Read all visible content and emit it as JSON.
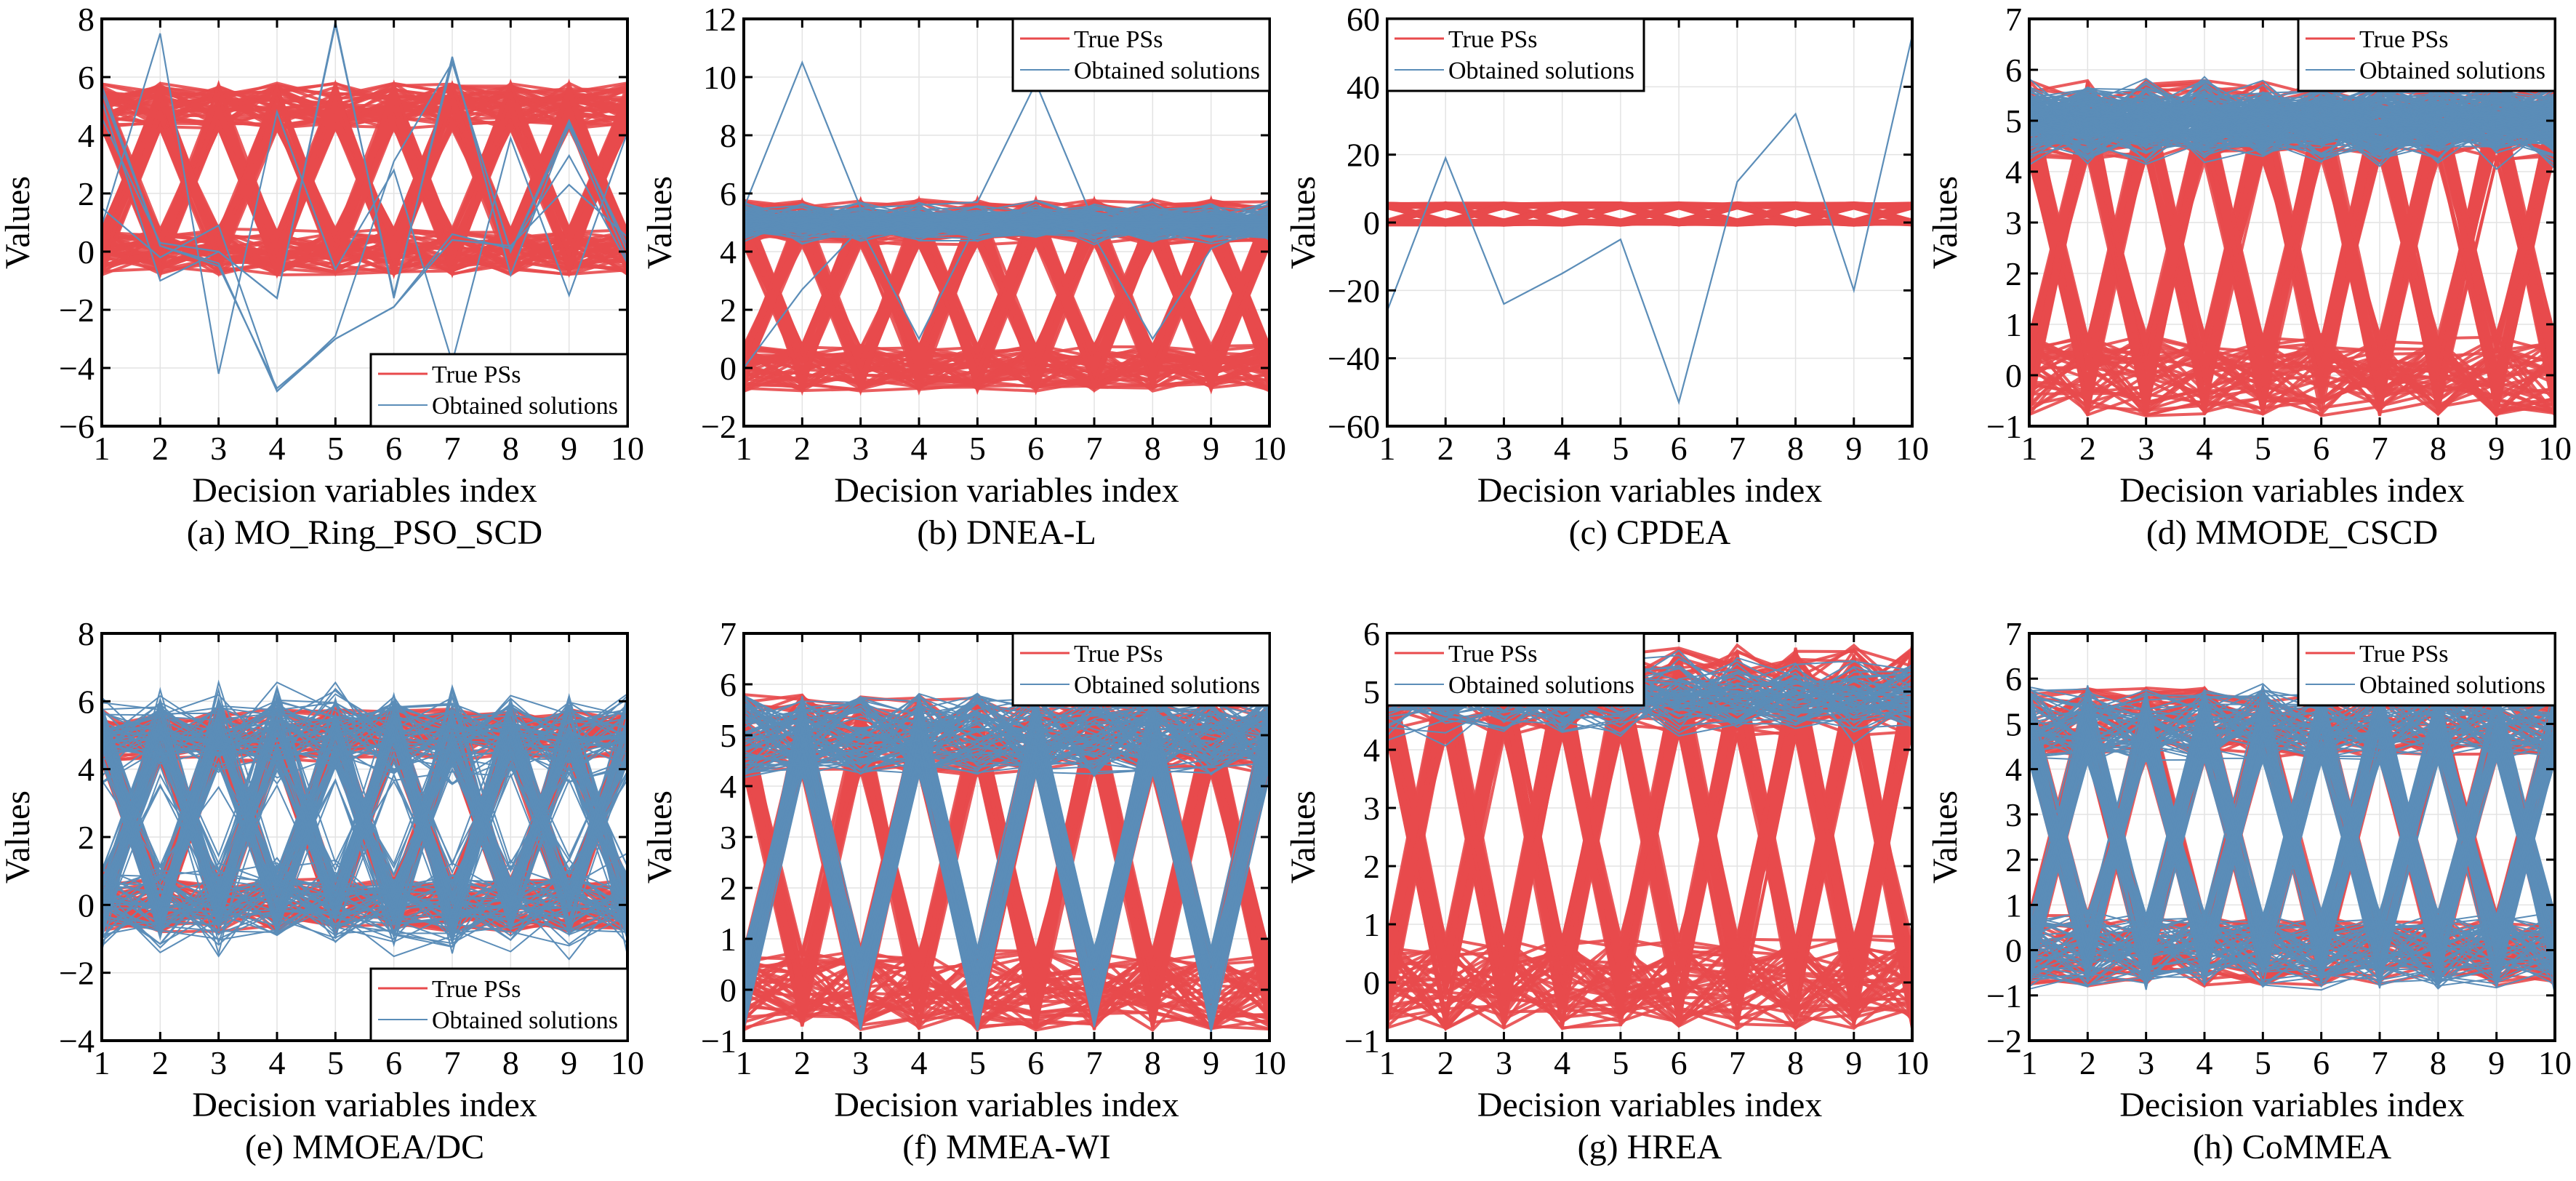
{
  "figure": {
    "colors": {
      "true_ps": "#E84A4C",
      "obtained": "#5B8DB8",
      "grid": "#E3E3E3",
      "axis": "#000000"
    },
    "legend_labels": {
      "true_ps": "True PSs",
      "obtained": "Obtained solutions"
    }
  },
  "chart_data": [
    {
      "id": "a",
      "type": "line",
      "caption": "(a) MO_Ring_PSO_SCD",
      "xlabel": "Decision variables index",
      "ylabel": "Values",
      "x": [
        1,
        2,
        3,
        4,
        5,
        6,
        7,
        8,
        9,
        10
      ],
      "xticks": [
        "1",
        "2",
        "3",
        "4",
        "5",
        "6",
        "7",
        "8",
        "9",
        "10"
      ],
      "ylim": [
        -6,
        8
      ],
      "yticks": [
        -6,
        -4,
        -2,
        0,
        2,
        4,
        6,
        8
      ],
      "ytick_labels": [
        "−6",
        "−4",
        "−2",
        "0",
        "2",
        "4",
        "6",
        "8"
      ],
      "grid": true,
      "legend_position": "bottom-right",
      "true_ps": {
        "low_band": [
          -0.8,
          0.8
        ],
        "high_band": [
          4.2,
          5.8
        ],
        "patterns": [
          "all-high",
          "all-low",
          "alternate-high-first",
          "alternate-low-first"
        ],
        "lines_per_pattern": 40
      },
      "obtained": {
        "mode": "explicit",
        "series": [
          [
            5.7,
            0.2,
            -0.4,
            -4.8,
            -3.0,
            -1.9,
            0.6,
            0.1,
            3.3,
            -0.4
          ],
          [
            4.6,
            0.3,
            0.0,
            -1.6,
            7.9,
            -1.6,
            6.7,
            -0.8,
            4.4,
            0.2
          ],
          [
            1.5,
            -0.2,
            0.9,
            -4.8,
            -2.9,
            3.1,
            6.5,
            0.0,
            4.5,
            0.0
          ],
          [
            0.9,
            7.5,
            -4.2,
            4.8,
            -0.6,
            2.8,
            -3.8,
            3.9,
            -1.5,
            4.1
          ],
          [
            5.5,
            0.2,
            -0.5,
            -4.7,
            -3.0,
            -1.9,
            0.4,
            0.2,
            2.3,
            0.5
          ],
          [
            5.2,
            -1.0,
            0.0,
            -1.6,
            7.8,
            -1.5,
            6.5,
            0.0,
            4.3,
            -0.3
          ]
        ]
      }
    },
    {
      "id": "b",
      "type": "line",
      "caption": "(b) DNEA-L",
      "xlabel": "Decision variables index",
      "ylabel": "Values",
      "x": [
        1,
        2,
        3,
        4,
        5,
        6,
        7,
        8,
        9,
        10
      ],
      "xticks": [
        "1",
        "2",
        "3",
        "4",
        "5",
        "6",
        "7",
        "8",
        "9",
        "10"
      ],
      "ylim": [
        -2,
        12
      ],
      "yticks": [
        -2,
        0,
        2,
        4,
        6,
        8,
        10,
        12
      ],
      "ytick_labels": [
        "−2",
        "0",
        "2",
        "4",
        "6",
        "8",
        "10",
        "12"
      ],
      "grid": true,
      "legend_position": "top-right",
      "true_ps": {
        "low_band": [
          -0.8,
          0.8
        ],
        "high_band": [
          4.2,
          5.8
        ],
        "patterns": [
          "all-high",
          "all-low",
          "alternate-high-first",
          "alternate-low-first"
        ],
        "lines_per_pattern": 40
      },
      "obtained": {
        "mode": "band",
        "center": 5.0,
        "spread": 0.85,
        "count": 120,
        "series": [
          [
            5.5,
            10.5,
            5.5,
            5.6,
            5.7,
            9.8,
            5.0,
            5.0,
            5.0,
            5.0
          ],
          [
            0.0,
            2.7,
            4.8,
            1.0,
            5.0,
            4.8,
            4.5,
            1.0,
            4.1,
            5.0
          ]
        ]
      }
    },
    {
      "id": "c",
      "type": "line",
      "caption": "(c) CPDEA",
      "xlabel": "Decision variables index",
      "ylabel": "Values",
      "x": [
        1,
        2,
        3,
        4,
        5,
        6,
        7,
        8,
        9,
        10
      ],
      "xticks": [
        "1",
        "2",
        "3",
        "4",
        "5",
        "6",
        "7",
        "8",
        "9",
        "10"
      ],
      "ylim": [
        -60,
        60
      ],
      "yticks": [
        -60,
        -40,
        -20,
        0,
        20,
        40,
        60
      ],
      "ytick_labels": [
        "−60",
        "−40",
        "−20",
        "0",
        "20",
        "40",
        "60"
      ],
      "grid": true,
      "legend_position": "top-left",
      "true_ps": {
        "low_band": [
          -0.8,
          0.8
        ],
        "high_band": [
          4.2,
          5.8
        ],
        "patterns": [
          "all-high",
          "all-low",
          "alternate-high-first",
          "alternate-low-first"
        ],
        "lines_per_pattern": 40
      },
      "obtained": {
        "mode": "explicit",
        "series": [
          [
            -26,
            19,
            -24,
            -15,
            -5,
            -53,
            12,
            32,
            -20,
            55
          ]
        ]
      }
    },
    {
      "id": "d",
      "type": "line",
      "caption": "(d) MMODE_CSCD",
      "xlabel": "Decision variables index",
      "ylabel": "Values",
      "x": [
        1,
        2,
        3,
        4,
        5,
        6,
        7,
        8,
        9,
        10
      ],
      "xticks": [
        "1",
        "2",
        "3",
        "4",
        "5",
        "6",
        "7",
        "8",
        "9",
        "10"
      ],
      "ylim": [
        -1,
        7
      ],
      "yticks": [
        -1,
        0,
        1,
        2,
        3,
        4,
        5,
        6,
        7
      ],
      "ytick_labels": [
        "−1",
        "0",
        "1",
        "2",
        "3",
        "4",
        "5",
        "6",
        "7"
      ],
      "grid": true,
      "legend_position": "top-right",
      "true_ps": {
        "low_band": [
          -0.8,
          0.8
        ],
        "high_band": [
          4.2,
          5.8
        ],
        "patterns": [
          "all-high",
          "all-low",
          "alternate-high-first",
          "alternate-low-first"
        ],
        "lines_per_pattern": 40
      },
      "obtained": {
        "mode": "band",
        "center": 5.0,
        "spread": 1.0,
        "count": 200,
        "series": []
      }
    },
    {
      "id": "e",
      "type": "line",
      "caption": "(e) MMOEA/DC",
      "xlabel": "Decision variables index",
      "ylabel": "Values",
      "x": [
        1,
        2,
        3,
        4,
        5,
        6,
        7,
        8,
        9,
        10
      ],
      "xticks": [
        "1",
        "2",
        "3",
        "4",
        "5",
        "6",
        "7",
        "8",
        "9",
        "10"
      ],
      "ylim": [
        -4,
        8
      ],
      "yticks": [
        -4,
        -2,
        0,
        2,
        4,
        6,
        8
      ],
      "ytick_labels": [
        "−4",
        "−2",
        "0",
        "2",
        "4",
        "6",
        "8"
      ],
      "grid": true,
      "legend_position": "bottom-right",
      "true_ps": {
        "low_band": [
          -0.8,
          0.8
        ],
        "high_band": [
          4.2,
          5.8
        ],
        "patterns": [
          "all-high",
          "all-low",
          "alternate-high-first",
          "alternate-low-first"
        ],
        "lines_per_pattern": 40
      },
      "obtained": {
        "mode": "noisy-patterns",
        "spread": 2.2,
        "count": 160,
        "series": []
      }
    },
    {
      "id": "f",
      "type": "line",
      "caption": "(f) MMEA-WI",
      "xlabel": "Decision variables index",
      "ylabel": "Values",
      "x": [
        1,
        2,
        3,
        4,
        5,
        6,
        7,
        8,
        9,
        10
      ],
      "xticks": [
        "1",
        "2",
        "3",
        "4",
        "5",
        "6",
        "7",
        "8",
        "9",
        "10"
      ],
      "ylim": [
        -1,
        7
      ],
      "yticks": [
        -1,
        0,
        1,
        2,
        3,
        4,
        5,
        6,
        7
      ],
      "ytick_labels": [
        "−1",
        "0",
        "1",
        "2",
        "3",
        "4",
        "5",
        "6",
        "7"
      ],
      "grid": true,
      "legend_position": "top-right",
      "true_ps": {
        "low_band": [
          -0.8,
          0.8
        ],
        "high_band": [
          4.2,
          5.8
        ],
        "patterns": [
          "all-high",
          "all-low",
          "alternate-high-first",
          "alternate-low-first"
        ],
        "lines_per_pattern": 40
      },
      "obtained": {
        "mode": "patterns",
        "patterns": [
          "all-high",
          "alternate-low-first"
        ],
        "spread": 1.1,
        "count": 140,
        "series": []
      }
    },
    {
      "id": "g",
      "type": "line",
      "caption": "(g) HREA",
      "xlabel": "Decision variables index",
      "ylabel": "Values",
      "x": [
        1,
        2,
        3,
        4,
        5,
        6,
        7,
        8,
        9,
        10
      ],
      "xticks": [
        "1",
        "2",
        "3",
        "4",
        "5",
        "6",
        "7",
        "8",
        "9",
        "10"
      ],
      "ylim": [
        -1,
        6
      ],
      "yticks": [
        -1,
        0,
        1,
        2,
        3,
        4,
        5,
        6
      ],
      "ytick_labels": [
        "−1",
        "0",
        "1",
        "2",
        "3",
        "4",
        "5",
        "6"
      ],
      "grid": true,
      "legend_position": "top-left",
      "true_ps": {
        "low_band": [
          -0.8,
          0.8
        ],
        "high_band": [
          4.2,
          5.8
        ],
        "patterns": [
          "all-high",
          "all-low",
          "alternate-high-first",
          "alternate-low-first"
        ],
        "lines_per_pattern": 40
      },
      "obtained": {
        "mode": "band",
        "center": 4.9,
        "spread": 0.9,
        "count": 60,
        "series": []
      }
    },
    {
      "id": "h",
      "type": "line",
      "caption": "(h) CoMMEA",
      "xlabel": "Decision variables index",
      "ylabel": "Values",
      "x": [
        1,
        2,
        3,
        4,
        5,
        6,
        7,
        8,
        9,
        10
      ],
      "xticks": [
        "1",
        "2",
        "3",
        "4",
        "5",
        "6",
        "7",
        "8",
        "9",
        "10"
      ],
      "ylim": [
        -2,
        7
      ],
      "yticks": [
        -2,
        -1,
        0,
        1,
        2,
        3,
        4,
        5,
        6,
        7
      ],
      "ytick_labels": [
        "−2",
        "−1",
        "0",
        "1",
        "2",
        "3",
        "4",
        "5",
        "6",
        "7"
      ],
      "grid": true,
      "legend_position": "top-right",
      "true_ps": {
        "low_band": [
          -0.8,
          0.8
        ],
        "high_band": [
          4.2,
          5.8
        ],
        "patterns": [
          "all-high",
          "all-low",
          "alternate-high-first",
          "alternate-low-first"
        ],
        "lines_per_pattern": 40
      },
      "obtained": {
        "mode": "patterns",
        "patterns": [
          "all-high",
          "all-low",
          "alternate-high-first",
          "alternate-low-first"
        ],
        "spread": 1.3,
        "count": 200,
        "series": []
      }
    }
  ]
}
